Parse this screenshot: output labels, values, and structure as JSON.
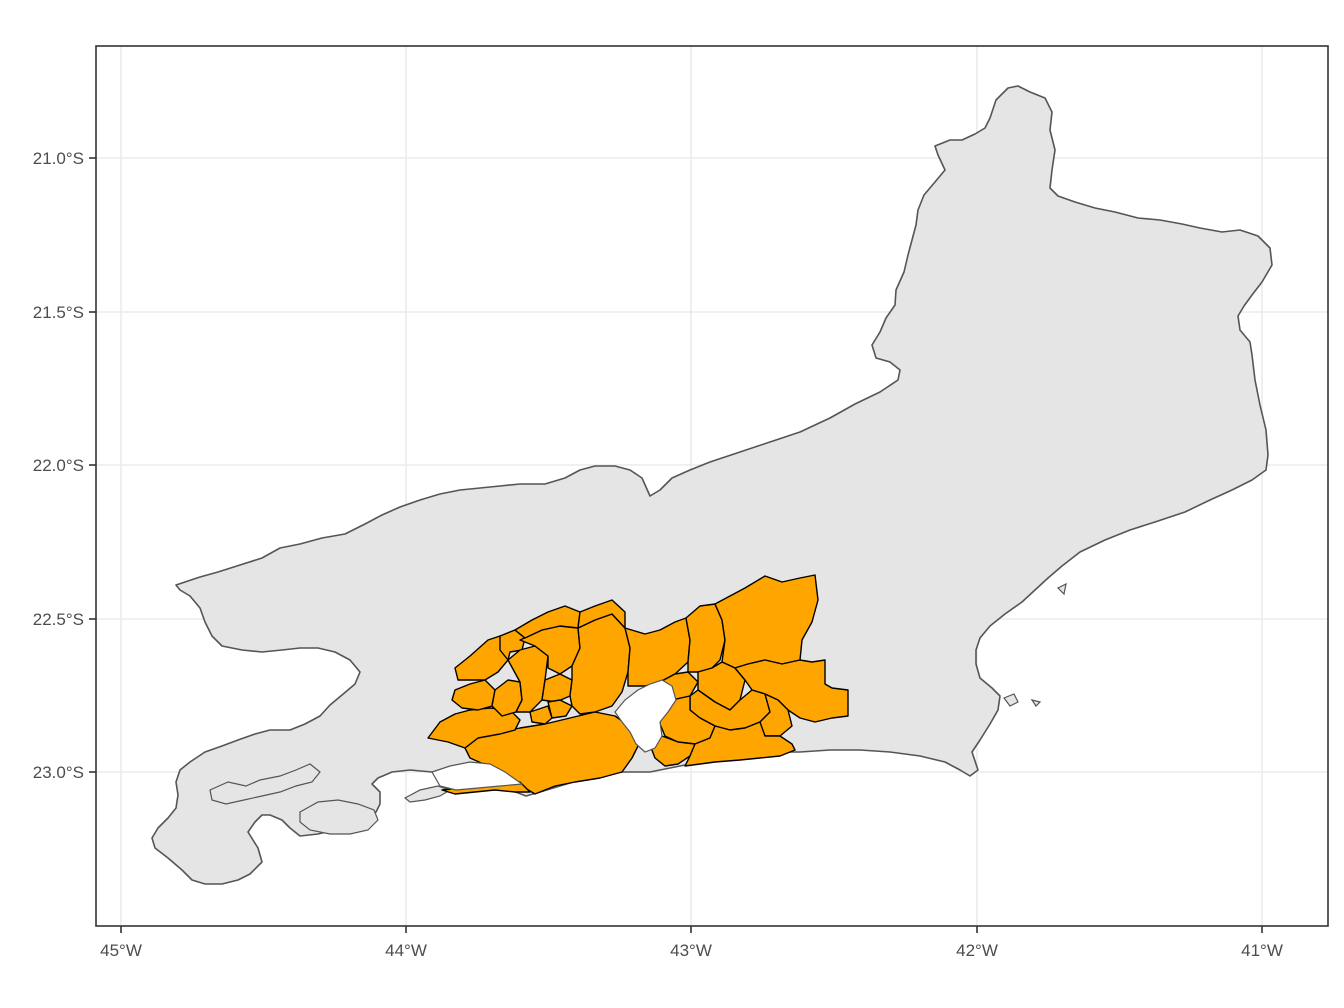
{
  "map": {
    "x_axis": {
      "ticks": [
        {
          "value": -45,
          "label": "45°W"
        },
        {
          "value": -44,
          "label": "44°W"
        },
        {
          "value": -43,
          "label": "43°W"
        },
        {
          "value": -42,
          "label": "42°W"
        },
        {
          "value": -41,
          "label": "41°W"
        }
      ]
    },
    "y_axis": {
      "ticks": [
        {
          "value": -21.0,
          "label": "21.0°S"
        },
        {
          "value": -21.5,
          "label": "21.5°S"
        },
        {
          "value": -22.0,
          "label": "22.0°S"
        },
        {
          "value": -22.5,
          "label": "22.5°S"
        },
        {
          "value": -23.0,
          "label": "23.0°S"
        }
      ]
    },
    "colors": {
      "state_fill": "#e5e5e5",
      "state_outline": "#555555",
      "highlight_fill": "#ffa500",
      "highlight_outline": "#000000",
      "grid": "#ebebeb",
      "panel_border": "#333333"
    }
  }
}
